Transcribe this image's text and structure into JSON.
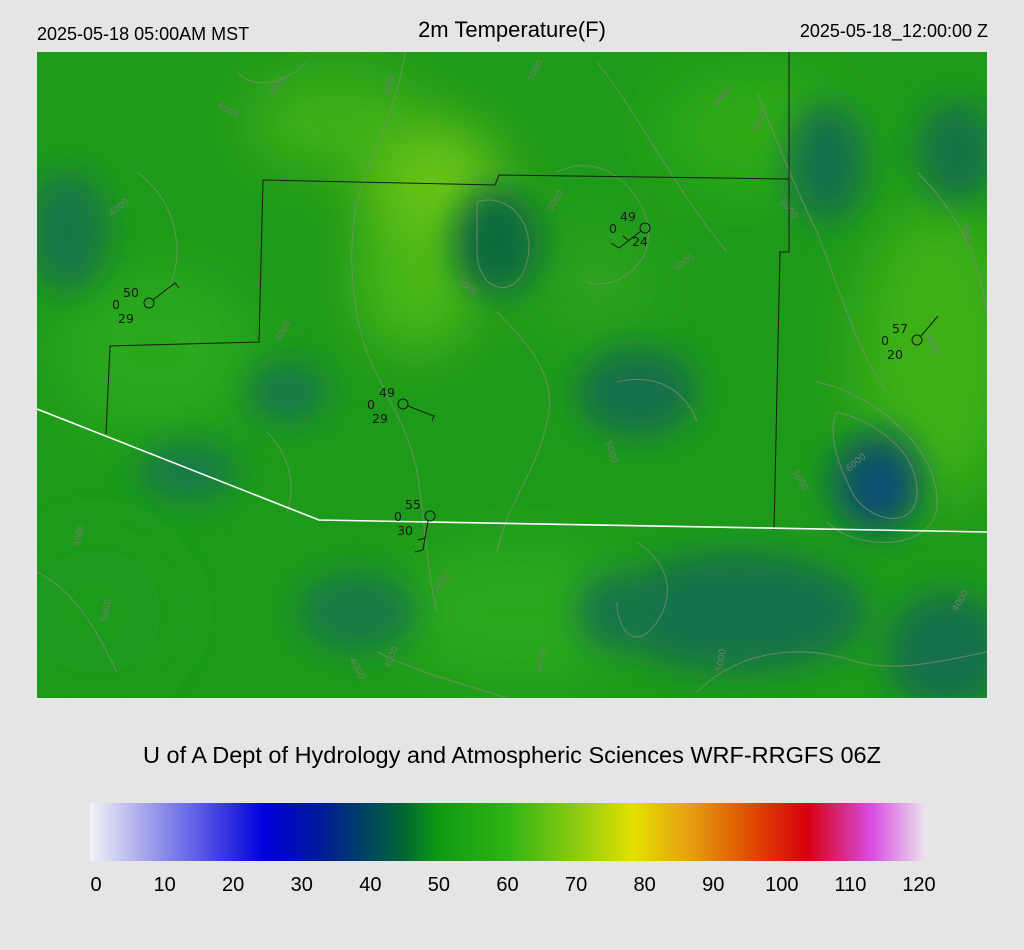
{
  "header": {
    "local_time": "2025-05-18 05:00AM MST",
    "title": "2m Temperature(F)",
    "valid_time": "2025-05-18_12:00:00 Z"
  },
  "map": {
    "field": "2m Temperature",
    "units": "F",
    "contour_labels": [
      "3000",
      "4000",
      "4000",
      "5000",
      "5000",
      "4000",
      "5000",
      "5000",
      "5000",
      "5000",
      "4000",
      "4000",
      "6000",
      "5000",
      "5000",
      "6000",
      "5000",
      "4000",
      "4000",
      "5000",
      "5000",
      "4000",
      "4000",
      "4000",
      "5000"
    ],
    "stations": [
      {
        "name": "station-west",
        "temp": "50",
        "dew": "29",
        "extra": "0"
      },
      {
        "name": "station-north",
        "temp": "49",
        "dew": "24",
        "extra": "0"
      },
      {
        "name": "station-central",
        "temp": "49",
        "dew": "29",
        "extra": "0"
      },
      {
        "name": "station-south",
        "temp": "55",
        "dew": "30",
        "extra": "0"
      },
      {
        "name": "station-east",
        "temp": "57",
        "dew": "20",
        "extra": "0"
      }
    ]
  },
  "credit": "U of A Dept of Hydrology and Atmospheric Sciences WRF-RRGFS 06Z",
  "colorbar": {
    "min": 0,
    "max": 120,
    "tick_labels": [
      "0",
      "10",
      "20",
      "30",
      "40",
      "50",
      "60",
      "70",
      "80",
      "90",
      "100",
      "110",
      "120"
    ],
    "stops": [
      {
        "value": 0,
        "color": "#f2f2f5"
      },
      {
        "value": 25,
        "color": "#0000dd"
      },
      {
        "value": 33,
        "color": "#001a99"
      },
      {
        "value": 45,
        "color": "#006633"
      },
      {
        "value": 50,
        "color": "#0e9a12"
      },
      {
        "value": 60,
        "color": "#2fb414"
      },
      {
        "value": 70,
        "color": "#8fcc10"
      },
      {
        "value": 78,
        "color": "#e4e000"
      },
      {
        "value": 86,
        "color": "#e6a010"
      },
      {
        "value": 95,
        "color": "#e04a00"
      },
      {
        "value": 103,
        "color": "#d80010"
      },
      {
        "value": 112,
        "color": "#d84ae0"
      },
      {
        "value": 120,
        "color": "#ece4ee"
      }
    ]
  }
}
